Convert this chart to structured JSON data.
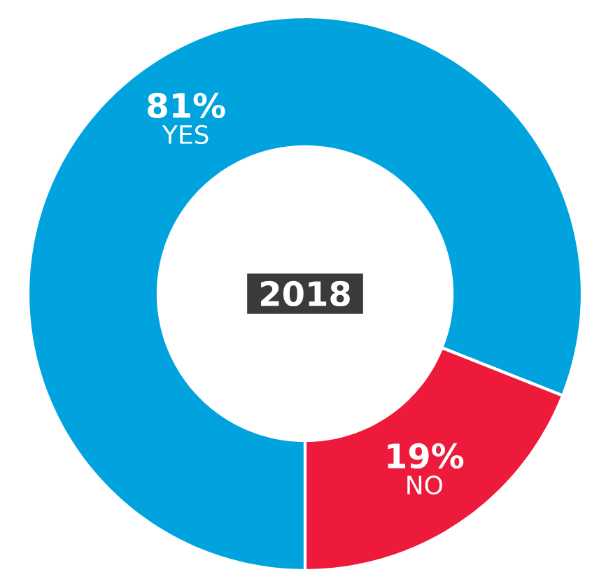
{
  "chart_data": {
    "type": "donut",
    "title": "2018",
    "categories": [
      "YES",
      "NO"
    ],
    "values": [
      81,
      19
    ],
    "value_labels": [
      "81%",
      "19%"
    ],
    "colors": [
      "#00a3dd",
      "#ed1a3b"
    ]
  }
}
